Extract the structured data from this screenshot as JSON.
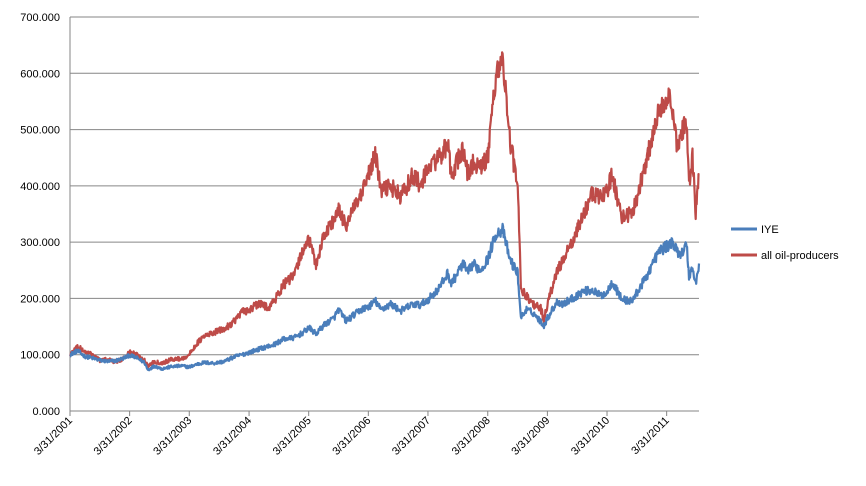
{
  "chart_data": {
    "type": "line",
    "title": "",
    "xlabel": "",
    "ylabel": "",
    "ylim": [
      0,
      700
    ],
    "xlim": [
      "2001-03-31",
      "2011-10-15"
    ],
    "y_ticks": [
      {
        "value": 0,
        "label": "0.000"
      },
      {
        "value": 100,
        "label": "100.000"
      },
      {
        "value": 200,
        "label": "200.000"
      },
      {
        "value": 300,
        "label": "300.000"
      },
      {
        "value": 400,
        "label": "400.000"
      },
      {
        "value": 500,
        "label": "500.000"
      },
      {
        "value": 600,
        "label": "600.000"
      },
      {
        "value": 700,
        "label": "700.000"
      }
    ],
    "x_ticks": [
      {
        "date": "2001-03-31",
        "label": "3/31/2001"
      },
      {
        "date": "2002-03-31",
        "label": "3/31/2002"
      },
      {
        "date": "2003-03-31",
        "label": "3/31/2003"
      },
      {
        "date": "2004-03-31",
        "label": "3/31/2004"
      },
      {
        "date": "2005-03-31",
        "label": "3/31/2005"
      },
      {
        "date": "2006-03-31",
        "label": "3/31/2006"
      },
      {
        "date": "2007-03-31",
        "label": "3/31/2007"
      },
      {
        "date": "2008-03-31",
        "label": "3/31/2008"
      },
      {
        "date": "2009-03-31",
        "label": "3/31/2009"
      },
      {
        "date": "2010-03-31",
        "label": "3/31/2010"
      },
      {
        "date": "2011-03-31",
        "label": "3/31/2011"
      }
    ],
    "grid": true,
    "legend_position": "right",
    "series": [
      {
        "name": "IYE",
        "color": "#4a7ebb",
        "points": [
          [
            "2001-03-31",
            100
          ],
          [
            "2001-05-15",
            107
          ],
          [
            "2001-06-30",
            97
          ],
          [
            "2001-08-15",
            94
          ],
          [
            "2001-09-30",
            90
          ],
          [
            "2001-11-15",
            88
          ],
          [
            "2001-12-31",
            89
          ],
          [
            "2002-02-15",
            93
          ],
          [
            "2002-03-31",
            99
          ],
          [
            "2002-05-15",
            94
          ],
          [
            "2002-06-30",
            86
          ],
          [
            "2002-07-20",
            73
          ],
          [
            "2002-08-31",
            80
          ],
          [
            "2002-10-15",
            75
          ],
          [
            "2002-12-15",
            79
          ],
          [
            "2003-02-15",
            80
          ],
          [
            "2003-03-31",
            78
          ],
          [
            "2003-05-15",
            83
          ],
          [
            "2003-06-30",
            86
          ],
          [
            "2003-08-31",
            85
          ],
          [
            "2003-10-31",
            88
          ],
          [
            "2003-12-31",
            96
          ],
          [
            "2004-02-15",
            100
          ],
          [
            "2004-03-31",
            104
          ],
          [
            "2004-05-31",
            110
          ],
          [
            "2004-08-31",
            118
          ],
          [
            "2004-10-31",
            128
          ],
          [
            "2004-12-31",
            130
          ],
          [
            "2005-02-28",
            140
          ],
          [
            "2005-03-31",
            148
          ],
          [
            "2005-05-15",
            137
          ],
          [
            "2005-06-30",
            152
          ],
          [
            "2005-08-31",
            165
          ],
          [
            "2005-09-30",
            180
          ],
          [
            "2005-11-15",
            160
          ],
          [
            "2005-12-31",
            170
          ],
          [
            "2006-02-15",
            180
          ],
          [
            "2006-03-31",
            185
          ],
          [
            "2006-05-15",
            195
          ],
          [
            "2006-06-15",
            180
          ],
          [
            "2006-08-15",
            190
          ],
          [
            "2006-10-15",
            178
          ],
          [
            "2006-12-31",
            190
          ],
          [
            "2007-02-15",
            188
          ],
          [
            "2007-03-31",
            198
          ],
          [
            "2007-05-31",
            215
          ],
          [
            "2007-07-31",
            245
          ],
          [
            "2007-08-20",
            225
          ],
          [
            "2007-10-31",
            262
          ],
          [
            "2007-11-30",
            245
          ],
          [
            "2007-12-31",
            262
          ],
          [
            "2008-02-15",
            250
          ],
          [
            "2008-03-31",
            270
          ],
          [
            "2008-05-20",
            315
          ],
          [
            "2008-06-30",
            322
          ],
          [
            "2008-08-15",
            268
          ],
          [
            "2008-09-30",
            245
          ],
          [
            "2008-10-20",
            165
          ],
          [
            "2008-11-20",
            180
          ],
          [
            "2008-12-31",
            175
          ],
          [
            "2009-02-15",
            160
          ],
          [
            "2009-03-10",
            152
          ],
          [
            "2009-03-31",
            165
          ],
          [
            "2009-05-31",
            195
          ],
          [
            "2009-06-30",
            190
          ],
          [
            "2009-08-31",
            200
          ],
          [
            "2009-10-31",
            212
          ],
          [
            "2009-12-31",
            215
          ],
          [
            "2010-02-15",
            205
          ],
          [
            "2010-03-31",
            210
          ],
          [
            "2010-04-30",
            230
          ],
          [
            "2010-06-30",
            198
          ],
          [
            "2010-08-31",
            195
          ],
          [
            "2010-09-30",
            210
          ],
          [
            "2010-11-30",
            240
          ],
          [
            "2010-12-31",
            260
          ],
          [
            "2011-02-15",
            285
          ],
          [
            "2011-03-31",
            292
          ],
          [
            "2011-04-30",
            300
          ],
          [
            "2011-05-31",
            285
          ],
          [
            "2011-06-30",
            280
          ],
          [
            "2011-07-31",
            295
          ],
          [
            "2011-08-15",
            240
          ],
          [
            "2011-09-05",
            255
          ],
          [
            "2011-09-25",
            225
          ],
          [
            "2011-10-15",
            262
          ]
        ]
      },
      {
        "name": "all oil-producers",
        "color": "#be4b48",
        "points": [
          [
            "2001-03-31",
            100
          ],
          [
            "2001-05-15",
            115
          ],
          [
            "2001-06-30",
            105
          ],
          [
            "2001-08-15",
            100
          ],
          [
            "2001-09-30",
            90
          ],
          [
            "2001-11-15",
            92
          ],
          [
            "2001-12-31",
            87
          ],
          [
            "2002-02-15",
            92
          ],
          [
            "2002-03-31",
            105
          ],
          [
            "2002-05-15",
            100
          ],
          [
            "2002-06-30",
            90
          ],
          [
            "2002-07-20",
            80
          ],
          [
            "2002-08-31",
            88
          ],
          [
            "2002-10-15",
            85
          ],
          [
            "2002-12-15",
            92
          ],
          [
            "2003-02-15",
            93
          ],
          [
            "2003-03-31",
            100
          ],
          [
            "2003-05-15",
            120
          ],
          [
            "2003-06-30",
            132
          ],
          [
            "2003-08-31",
            140
          ],
          [
            "2003-10-31",
            145
          ],
          [
            "2003-12-31",
            160
          ],
          [
            "2004-02-15",
            175
          ],
          [
            "2004-03-31",
            180
          ],
          [
            "2004-05-31",
            190
          ],
          [
            "2004-07-31",
            185
          ],
          [
            "2004-08-31",
            195
          ],
          [
            "2004-10-31",
            225
          ],
          [
            "2004-12-31",
            240
          ],
          [
            "2005-02-28",
            290
          ],
          [
            "2005-03-31",
            305
          ],
          [
            "2005-05-15",
            260
          ],
          [
            "2005-06-30",
            310
          ],
          [
            "2005-08-31",
            340
          ],
          [
            "2005-09-30",
            355
          ],
          [
            "2005-11-15",
            330
          ],
          [
            "2005-12-31",
            360
          ],
          [
            "2006-02-15",
            380
          ],
          [
            "2006-03-31",
            420
          ],
          [
            "2006-05-15",
            455
          ],
          [
            "2006-06-15",
            390
          ],
          [
            "2006-08-15",
            400
          ],
          [
            "2006-10-15",
            380
          ],
          [
            "2006-12-31",
            420
          ],
          [
            "2007-02-15",
            400
          ],
          [
            "2007-03-31",
            430
          ],
          [
            "2007-05-31",
            450
          ],
          [
            "2007-07-31",
            470
          ],
          [
            "2007-08-20",
            420
          ],
          [
            "2007-10-31",
            465
          ],
          [
            "2007-11-30",
            420
          ],
          [
            "2007-12-31",
            440
          ],
          [
            "2008-02-15",
            430
          ],
          [
            "2008-03-31",
            450
          ],
          [
            "2008-05-20",
            600
          ],
          [
            "2008-06-30",
            625
          ],
          [
            "2008-08-15",
            480
          ],
          [
            "2008-09-30",
            400
          ],
          [
            "2008-10-20",
            220
          ],
          [
            "2008-11-20",
            205
          ],
          [
            "2008-12-31",
            190
          ],
          [
            "2009-02-15",
            185
          ],
          [
            "2009-03-10",
            160
          ],
          [
            "2009-03-31",
            190
          ],
          [
            "2009-05-31",
            250
          ],
          [
            "2009-06-30",
            265
          ],
          [
            "2009-08-31",
            300
          ],
          [
            "2009-10-31",
            345
          ],
          [
            "2009-12-31",
            385
          ],
          [
            "2010-02-15",
            380
          ],
          [
            "2010-03-31",
            390
          ],
          [
            "2010-04-30",
            420
          ],
          [
            "2010-06-30",
            345
          ],
          [
            "2010-08-31",
            350
          ],
          [
            "2010-09-30",
            380
          ],
          [
            "2010-11-30",
            450
          ],
          [
            "2010-12-31",
            480
          ],
          [
            "2011-02-15",
            540
          ],
          [
            "2011-03-31",
            560
          ],
          [
            "2011-04-30",
            545
          ],
          [
            "2011-05-31",
            470
          ],
          [
            "2011-06-30",
            500
          ],
          [
            "2011-07-31",
            510
          ],
          [
            "2011-08-15",
            400
          ],
          [
            "2011-09-05",
            450
          ],
          [
            "2011-09-25",
            350
          ],
          [
            "2011-10-15",
            420
          ]
        ]
      }
    ]
  }
}
